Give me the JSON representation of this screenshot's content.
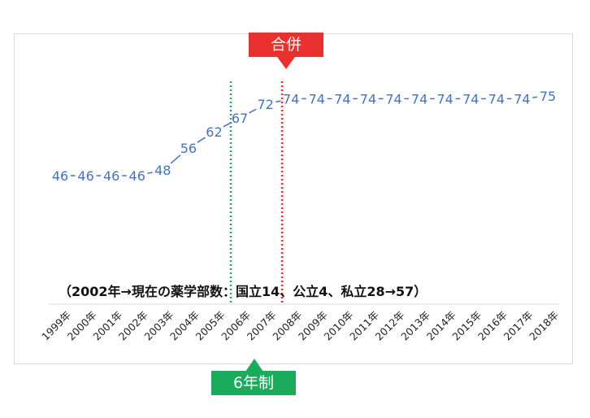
{
  "chart_data": {
    "type": "line",
    "categories": [
      "1999年",
      "2000年",
      "2001年",
      "2002年",
      "2003年",
      "2004年",
      "2005年",
      "2006年",
      "2007年",
      "2008年",
      "2009年",
      "2010年",
      "2011年",
      "2012年",
      "2013年",
      "2014年",
      "2015年",
      "2016年",
      "2017年",
      "2018年"
    ],
    "series": [
      {
        "values": [
          46,
          46,
          46,
          46,
          48,
          56,
          62,
          67,
          72,
          74,
          74,
          74,
          74,
          74,
          74,
          74,
          74,
          74,
          74,
          75
        ]
      }
    ],
    "line_color": "#4472c4",
    "annotation": "（2002年→現在の薬学部数：国立14、公立4、私立28→57）",
    "markers": [
      {
        "label": "合併",
        "at": "2008年",
        "color": "#e8312f",
        "line_color": "#e8312f"
      },
      {
        "label": "6年制",
        "at": "2006年",
        "color": "#1aac5c",
        "line_color": "#1aac5c"
      }
    ]
  }
}
